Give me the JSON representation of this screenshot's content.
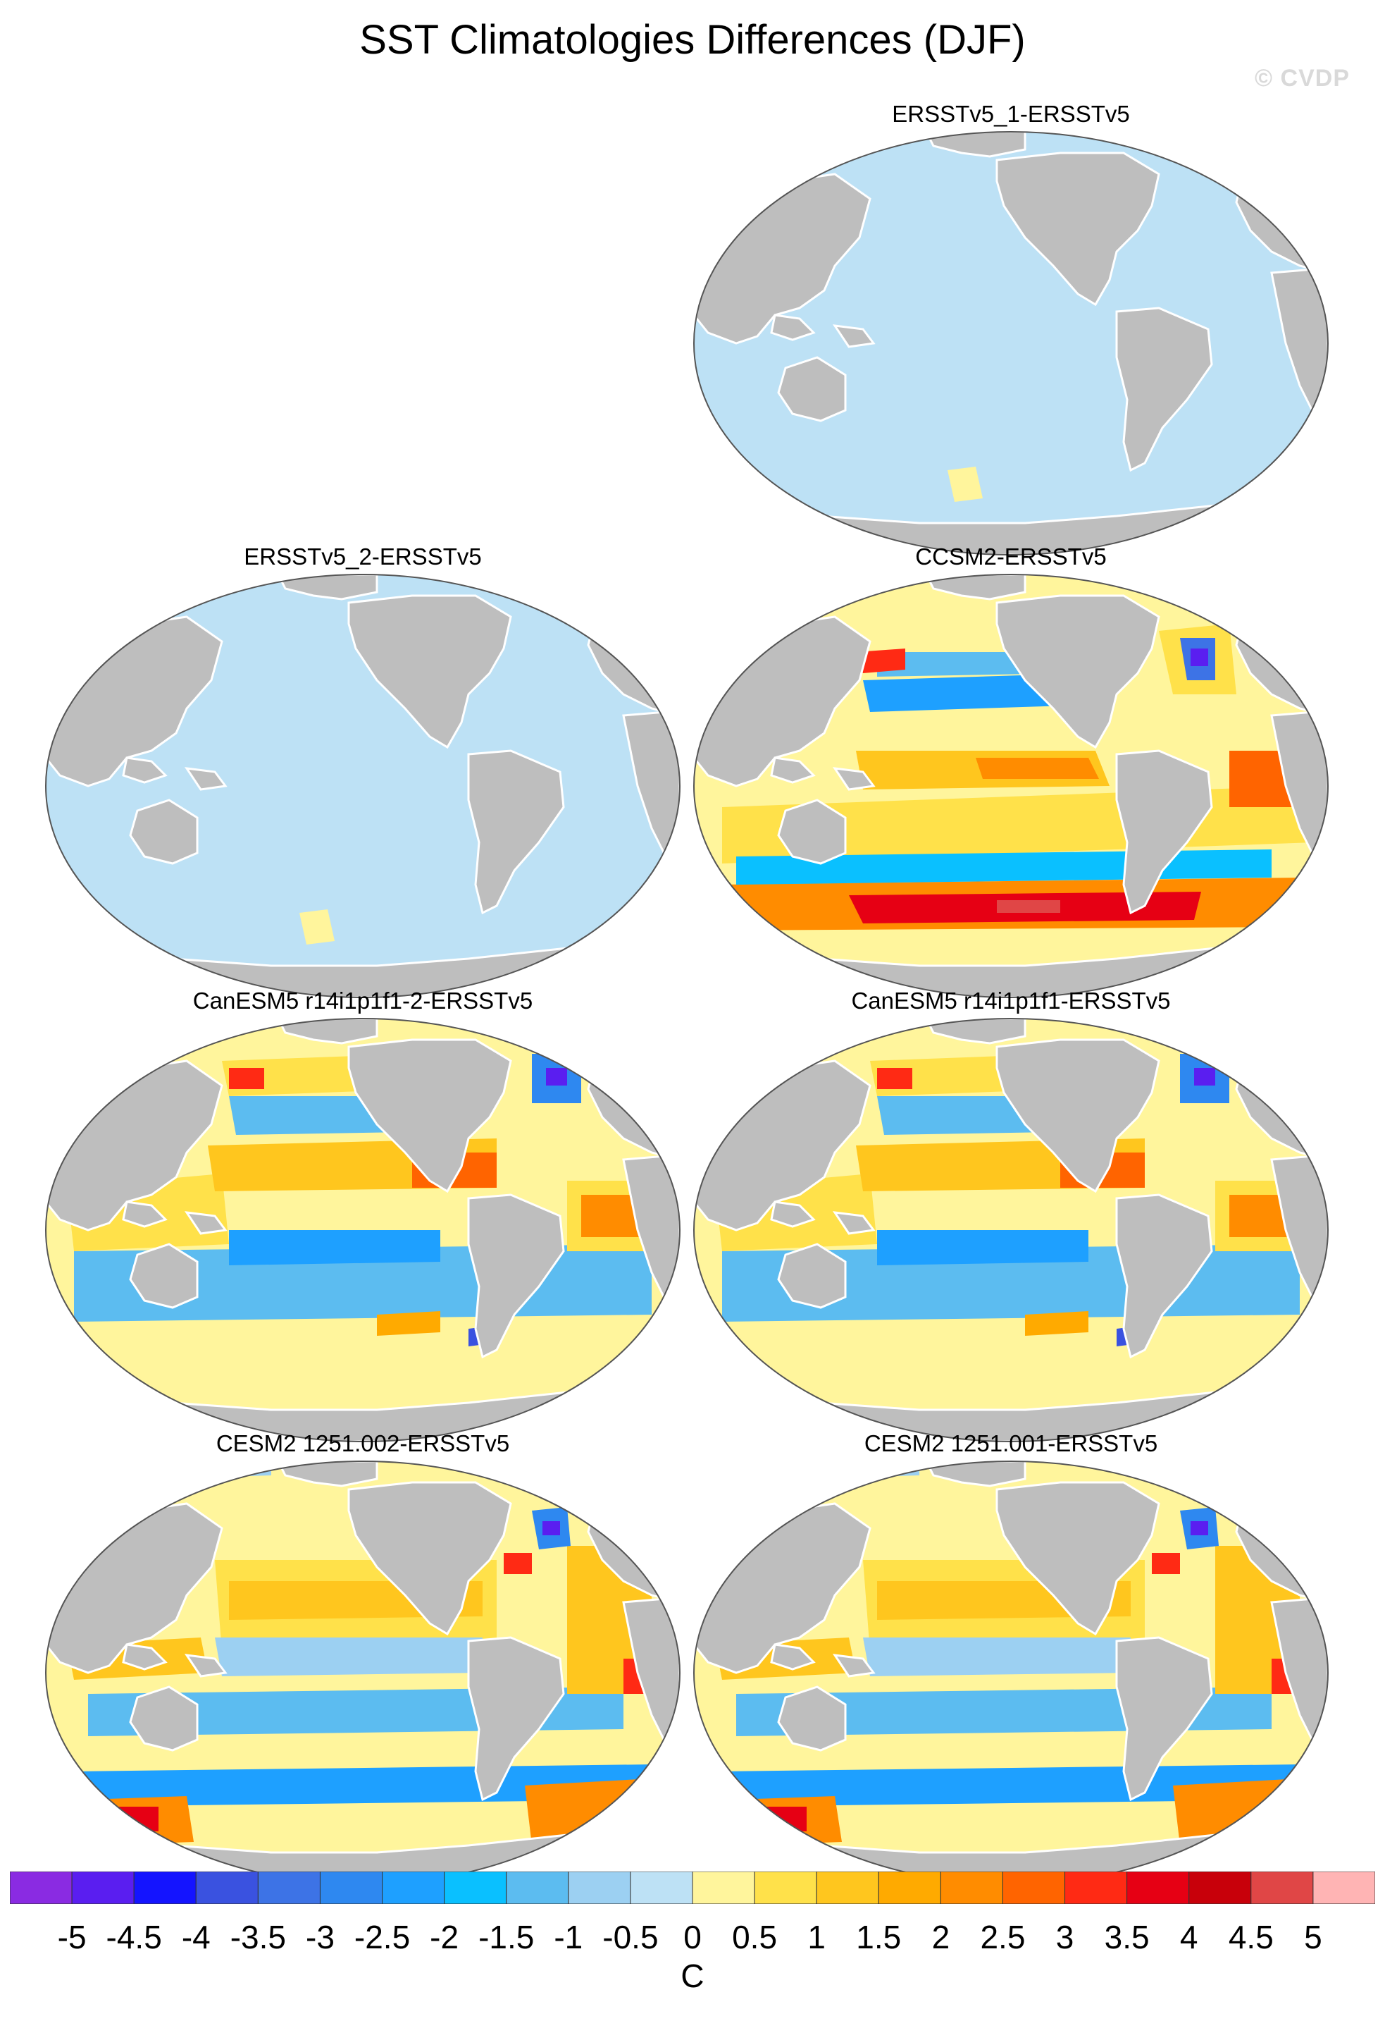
{
  "title": "SST Climatologies Differences (DJF)",
  "copyright": "© CVDP",
  "units": "C",
  "panels": [
    {
      "label": "ERSSTv5_1-ERSSTv5",
      "pattern": "near-zero"
    },
    {
      "label": "ERSSTv5_2-ERSSTv5",
      "pattern": "near-zero"
    },
    {
      "label": "CCSM2-ERSSTv5",
      "pattern": "model-warm-south"
    },
    {
      "label": "CanESM5 r14i1p1f1-2-ERSSTv5",
      "pattern": "model-canesm"
    },
    {
      "label": "CanESM5 r14i1p1f1-ERSSTv5",
      "pattern": "model-canesm"
    },
    {
      "label": "CESM2 1251.002-ERSSTv5",
      "pattern": "model-cesm"
    },
    {
      "label": "CESM2 1251.001-ERSSTv5",
      "pattern": "model-cesm"
    }
  ],
  "colorbar": {
    "tick_labels": [
      "-5",
      "-4.5",
      "-4",
      "-3.5",
      "-3",
      "-2.5",
      "-2",
      "-1.5",
      "-1",
      "-0.5",
      "0",
      "0.5",
      "1",
      "1.5",
      "2",
      "2.5",
      "3",
      "3.5",
      "4",
      "4.5",
      "5"
    ],
    "colors": [
      "#8a2be2",
      "#5a1ef0",
      "#1414ff",
      "#3a52e0",
      "#3d73e6",
      "#2e88f0",
      "#1ea0ff",
      "#0ac0ff",
      "#5cbcf0",
      "#9cd0f2",
      "#bde1f5",
      "#fff59c",
      "#ffe14a",
      "#ffc61e",
      "#ffaa00",
      "#ff8c00",
      "#ff6400",
      "#ff2a14",
      "#e60014",
      "#c8000a",
      "#e04646",
      "#ffb4b4"
    ]
  },
  "colors": {
    "land": "#bebebe",
    "coast": "#ffffff",
    "outline": "#555555"
  }
}
